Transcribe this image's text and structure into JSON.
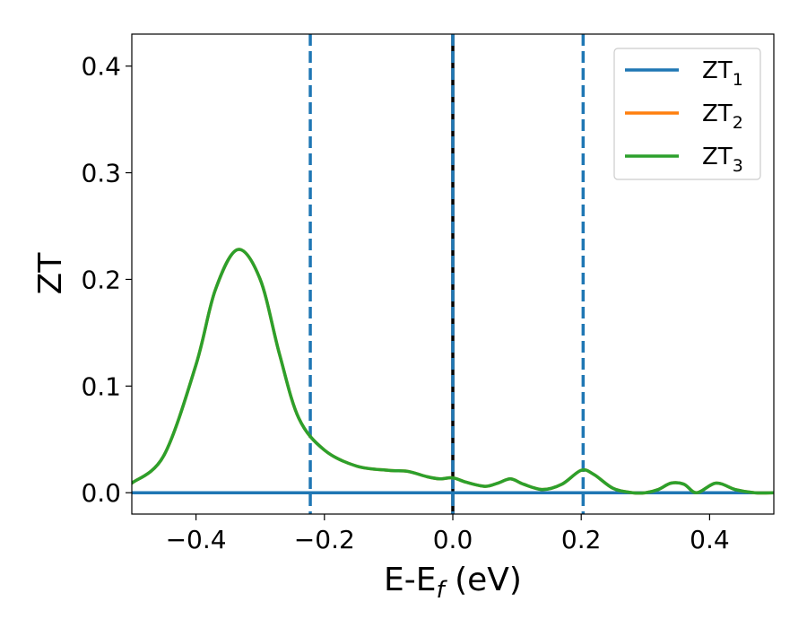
{
  "chart_data": {
    "type": "line",
    "xlabel_main": "E-E",
    "xlabel_sub": "f",
    "xlabel_unit": " (eV)",
    "ylabel": "ZT",
    "xlim": [
      -0.5,
      0.5
    ],
    "ylim": [
      -0.02,
      0.43
    ],
    "xticks": [
      -0.4,
      -0.2,
      0.0,
      0.2,
      0.4
    ],
    "xtick_labels": [
      "−0.4",
      "−0.2",
      "0.0",
      "0.2",
      "0.4"
    ],
    "yticks": [
      0.0,
      0.1,
      0.2,
      0.3,
      0.4
    ],
    "ytick_labels": [
      "0.0",
      "0.1",
      "0.2",
      "0.3",
      "0.4"
    ],
    "legend_position": "top-right",
    "grid": false,
    "vlines": [
      {
        "x": -0.222,
        "color": "#1f77b4",
        "style": "dashed"
      },
      {
        "x": 0.0,
        "color": "#000000",
        "style": "solid"
      },
      {
        "x": 0.0,
        "color": "#1f77b4",
        "style": "dashed"
      },
      {
        "x": 0.203,
        "color": "#1f77b4",
        "style": "dashed"
      }
    ],
    "series": [
      {
        "name": "ZT",
        "name_sub": "1",
        "color": "#1f77b4",
        "x": [
          -0.5,
          0.5
        ],
        "y": [
          0.0,
          0.0
        ]
      },
      {
        "name": "ZT",
        "name_sub": "2",
        "color": "#ff7f0e",
        "x": [
          -0.5,
          -0.45,
          -0.4,
          -0.37,
          -0.335,
          -0.3,
          -0.27,
          -0.24,
          -0.2,
          -0.15,
          -0.1,
          -0.07,
          -0.04,
          -0.02,
          0.0,
          0.02,
          0.05,
          0.07,
          0.09,
          0.11,
          0.14,
          0.17,
          0.2,
          0.22,
          0.25,
          0.28,
          0.3,
          0.32,
          0.34,
          0.36,
          0.38,
          0.41,
          0.44,
          0.47,
          0.5
        ],
        "y": [
          0.009,
          0.035,
          0.12,
          0.19,
          0.228,
          0.2,
          0.13,
          0.07,
          0.04,
          0.025,
          0.021,
          0.02,
          0.015,
          0.013,
          0.014,
          0.01,
          0.006,
          0.009,
          0.013,
          0.008,
          0.003,
          0.008,
          0.021,
          0.017,
          0.004,
          0.0,
          0.0,
          0.003,
          0.009,
          0.008,
          0.0,
          0.009,
          0.003,
          0.0,
          0.0
        ]
      },
      {
        "name": "ZT",
        "name_sub": "3",
        "color": "#2ca02c",
        "x": [
          -0.5,
          -0.45,
          -0.4,
          -0.37,
          -0.335,
          -0.3,
          -0.27,
          -0.24,
          -0.2,
          -0.15,
          -0.1,
          -0.07,
          -0.04,
          -0.02,
          0.0,
          0.02,
          0.05,
          0.07,
          0.09,
          0.11,
          0.14,
          0.17,
          0.2,
          0.22,
          0.25,
          0.28,
          0.3,
          0.32,
          0.34,
          0.36,
          0.38,
          0.41,
          0.44,
          0.47,
          0.5
        ],
        "y": [
          0.009,
          0.035,
          0.12,
          0.19,
          0.228,
          0.2,
          0.13,
          0.07,
          0.04,
          0.025,
          0.021,
          0.02,
          0.015,
          0.013,
          0.014,
          0.01,
          0.006,
          0.009,
          0.013,
          0.008,
          0.003,
          0.008,
          0.021,
          0.017,
          0.004,
          0.0,
          0.0,
          0.003,
          0.009,
          0.008,
          0.0,
          0.009,
          0.003,
          0.0,
          0.0
        ]
      }
    ]
  }
}
